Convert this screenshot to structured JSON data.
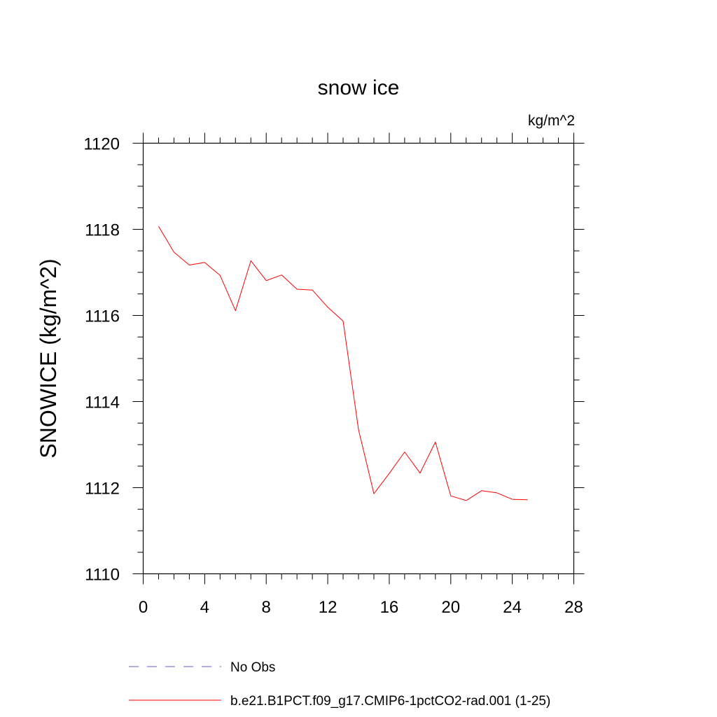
{
  "chart_data": {
    "type": "line",
    "title": "snow ice",
    "units_label": "kg/m^2",
    "ylabel": "SNOWICE  (kg/m^2)",
    "xlabel": "",
    "xlim": [
      0,
      28
    ],
    "ylim": [
      1110,
      1120
    ],
    "x_ticks": [
      0,
      4,
      8,
      12,
      16,
      20,
      24,
      28
    ],
    "y_ticks": [
      1110,
      1112,
      1114,
      1116,
      1118,
      1120
    ],
    "x_tick_labels": [
      "0",
      "4",
      "8",
      "12",
      "16",
      "20",
      "24",
      "28"
    ],
    "y_tick_labels": [
      "1110",
      "1112",
      "1114",
      "1116",
      "1118",
      "1120"
    ],
    "grid": false,
    "legend_position": "bottom",
    "series": [
      {
        "name": "b.e21.B1PCT.f09_g17.CMIP6-1pctCO2-rad.001 (1-25)",
        "color": "#ff0000",
        "style": "solid",
        "x": [
          1,
          2,
          3,
          4,
          5,
          6,
          7,
          8,
          9,
          10,
          11,
          12,
          13,
          14,
          15,
          16,
          17,
          18,
          19,
          20,
          21,
          22,
          23,
          24,
          25
        ],
        "y": [
          1118.07,
          1117.47,
          1117.17,
          1117.23,
          1116.93,
          1116.11,
          1117.27,
          1116.81,
          1116.94,
          1116.61,
          1116.59,
          1116.19,
          1115.87,
          1113.35,
          1111.86,
          1112.33,
          1112.83,
          1112.34,
          1113.06,
          1111.81,
          1111.7,
          1111.93,
          1111.88,
          1111.73,
          1111.72
        ]
      }
    ],
    "legend": [
      {
        "label": "No Obs",
        "color": "#6a5acd",
        "style": "dashed"
      },
      {
        "label": "b.e21.B1PCT.f09_g17.CMIP6-1pctCO2-rad.001 (1-25)",
        "color": "#ff0000",
        "style": "solid"
      }
    ]
  }
}
